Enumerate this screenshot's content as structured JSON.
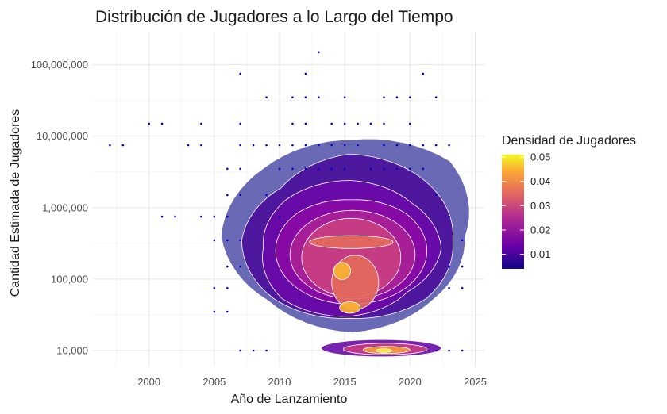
{
  "chart_data": {
    "type": "scatter",
    "title": "Distribución de Jugadores a lo Largo del Tiempo",
    "xlabel": "Año de Lanzamiento",
    "ylabel": "Cantidad Estimada de Jugadores",
    "x_ticks": [
      "2000",
      "2005",
      "2010",
      "2015",
      "2020",
      "2025"
    ],
    "y_ticks": [
      "10,000",
      "100,000",
      "1,000,000",
      "10,000,000",
      "100,000,000"
    ],
    "xlim": [
      1995.7,
      2025.7
    ],
    "ylim": [
      6000,
      290000000
    ],
    "y_scale": "log10",
    "grid": true,
    "point_color": "#0000cc",
    "legend": {
      "title": "Densidad de Jugadores",
      "position": "right",
      "ticks": [
        "0.01",
        "0.02",
        "0.03",
        "0.04",
        "0.05"
      ],
      "colors": [
        "#0d0887",
        "#6a00a8",
        "#b12a90",
        "#e16462",
        "#fca636",
        "#f0f921"
      ]
    },
    "points": [
      [
        1997,
        7500000
      ],
      [
        1998,
        7500000
      ],
      [
        2000,
        15000000
      ],
      [
        2001,
        15000000
      ],
      [
        2001,
        750000
      ],
      [
        2002,
        750000
      ],
      [
        2003,
        7500000
      ],
      [
        2004,
        7500000
      ],
      [
        2004,
        15000000
      ],
      [
        2004,
        750000
      ],
      [
        2005,
        750000
      ],
      [
        2005,
        350000
      ],
      [
        2005,
        75000
      ],
      [
        2005,
        35000
      ],
      [
        2006,
        3500000
      ],
      [
        2006,
        1500000
      ],
      [
        2006,
        750000
      ],
      [
        2006,
        350000
      ],
      [
        2006,
        150000
      ],
      [
        2006,
        75000
      ],
      [
        2006,
        35000
      ],
      [
        2007,
        75000000
      ],
      [
        2007,
        15000000
      ],
      [
        2007,
        7500000
      ],
      [
        2007,
        3500000
      ],
      [
        2007,
        1500000
      ],
      [
        2007,
        350000
      ],
      [
        2007,
        150000
      ],
      [
        2007,
        10000
      ],
      [
        2008,
        7500000
      ],
      [
        2008,
        10000
      ],
      [
        2009,
        35000000
      ],
      [
        2009,
        7500000
      ],
      [
        2009,
        1500000
      ],
      [
        2009,
        10000
      ],
      [
        2010,
        7500000
      ],
      [
        2010,
        3500000
      ],
      [
        2010,
        750000
      ],
      [
        2011,
        35000000
      ],
      [
        2011,
        15000000
      ],
      [
        2011,
        7500000
      ],
      [
        2011,
        3500000
      ],
      [
        2012,
        75000000
      ],
      [
        2012,
        35000000
      ],
      [
        2012,
        15000000
      ],
      [
        2012,
        7500000
      ],
      [
        2012,
        3500000
      ],
      [
        2013,
        150000000
      ],
      [
        2013,
        35000000
      ],
      [
        2013,
        7500000
      ],
      [
        2013,
        3500000
      ],
      [
        2014,
        15000000
      ],
      [
        2014,
        7500000
      ],
      [
        2014,
        3500000
      ],
      [
        2015,
        35000000
      ],
      [
        2015,
        15000000
      ],
      [
        2015,
        7500000
      ],
      [
        2015,
        3500000
      ],
      [
        2016,
        15000000
      ],
      [
        2016,
        7500000
      ],
      [
        2017,
        15000000
      ],
      [
        2017,
        3500000
      ],
      [
        2018,
        35000000
      ],
      [
        2018,
        15000000
      ],
      [
        2018,
        7500000
      ],
      [
        2018,
        3500000
      ],
      [
        2019,
        35000000
      ],
      [
        2019,
        7500000
      ],
      [
        2019,
        3500000
      ],
      [
        2020,
        35000000
      ],
      [
        2020,
        15000000
      ],
      [
        2020,
        7500000
      ],
      [
        2020,
        3500000
      ],
      [
        2021,
        75000000
      ],
      [
        2021,
        7500000
      ],
      [
        2021,
        3500000
      ],
      [
        2022,
        35000000
      ],
      [
        2022,
        7500000
      ],
      [
        2022,
        1500000
      ],
      [
        2022,
        10000
      ],
      [
        2023,
        7500000
      ],
      [
        2023,
        750000
      ],
      [
        2023,
        150000
      ],
      [
        2023,
        75000
      ],
      [
        2023,
        10000
      ],
      [
        2024,
        350000
      ],
      [
        2024,
        150000
      ],
      [
        2024,
        75000
      ],
      [
        2024,
        10000
      ]
    ],
    "density_levels": [
      {
        "level": 0.005,
        "color": "#5c5cb0",
        "center": [
          2015.6,
          400000
        ],
        "rx": 9.6,
        "ry_dec": 1.35,
        "wobble": [
          0.9,
          1.1,
          1.0,
          1.0,
          1.05,
          0.95,
          1.0,
          0.92
        ]
      },
      {
        "level": 0.01,
        "color": "#4b119c",
        "center": [
          2015.4,
          350000
        ],
        "rx": 8.3,
        "ry_dec": 1.15,
        "wobble": [
          0.95,
          1.0,
          1.05,
          0.9,
          1.0,
          1.0,
          0.95,
          1.0
        ]
      },
      {
        "level": 0.015,
        "color": "#6a0aa8",
        "center": [
          2015.4,
          270000
        ],
        "rx": 7.0,
        "ry_dec": 0.95,
        "wobble": [
          1.0,
          0.95,
          1.0,
          1.0,
          0.95,
          1.05,
          1.0,
          0.9
        ]
      },
      {
        "level": 0.02,
        "color": "#8a0aa6",
        "center": [
          2015.5,
          250000
        ],
        "rx": 5.8,
        "ry_dec": 0.75,
        "wobble": [
          1.0,
          1.0,
          0.95,
          1.0,
          1.0,
          1.0,
          1.0,
          1.0
        ]
      },
      {
        "level": 0.025,
        "color": "#a82296",
        "center": [
          2015.6,
          220000
        ],
        "rx": 4.8,
        "ry_dec": 0.62,
        "wobble": [
          1.0,
          1.0,
          1.0,
          1.0,
          1.0,
          1.0,
          1.0,
          1.0
        ]
      },
      {
        "level": 0.03,
        "color": "#c83e82",
        "center": [
          2015.5,
          200000
        ],
        "rx": 3.8,
        "ry_dec": 0.55,
        "wobble": [
          1.0,
          1.0,
          1.0,
          1.0,
          1.0,
          1.0,
          1.0,
          1.0
        ]
      },
      {
        "level": 0.035,
        "color": "#e26a5c",
        "center": [
          2015.5,
          330000
        ],
        "rx": 3.2,
        "ry_dec": 0.09,
        "wobble": [
          1.0,
          1.0,
          1.0,
          1.0,
          1.0,
          1.0,
          1.0,
          1.0
        ]
      },
      {
        "level": 0.035,
        "color": "#e26a5c",
        "center": [
          2015.8,
          90000
        ],
        "rx": 1.8,
        "ry_dec": 0.38,
        "wobble": [
          1.0,
          1.0,
          1.0,
          1.0,
          1.0,
          1.0,
          1.0,
          1.0
        ]
      },
      {
        "level": 0.045,
        "color": "#f8b332",
        "center": [
          2014.8,
          130000
        ],
        "rx": 0.65,
        "ry_dec": 0.12,
        "wobble": [
          1.0,
          1.0,
          1.0,
          1.0,
          1.0,
          1.0,
          1.0,
          1.0
        ]
      },
      {
        "level": 0.045,
        "color": "#f8b332",
        "center": [
          2015.4,
          40000
        ],
        "rx": 0.8,
        "ry_dec": 0.08,
        "wobble": [
          1.0,
          1.0,
          1.0,
          1.0,
          1.0,
          1.0,
          1.0,
          1.0
        ]
      },
      {
        "level": 0.01,
        "color": "#6b10a6",
        "center": [
          2017.8,
          10800
        ],
        "rx": 4.6,
        "ry_dec": 0.12,
        "wobble": [
          1.0,
          1.0,
          1.0,
          1.0,
          1.0,
          1.0,
          1.0,
          1.0
        ]
      },
      {
        "level": 0.025,
        "color": "#c63d83",
        "center": [
          2018.1,
          10500
        ],
        "rx": 3.2,
        "ry_dec": 0.08,
        "wobble": [
          1.0,
          1.0,
          1.0,
          1.0,
          1.0,
          1.0,
          1.0,
          1.0
        ]
      },
      {
        "level": 0.04,
        "color": "#f59a3c",
        "center": [
          2018.2,
          10200
        ],
        "rx": 1.8,
        "ry_dec": 0.05,
        "wobble": [
          1.0,
          1.0,
          1.0,
          1.0,
          1.0,
          1.0,
          1.0,
          1.0
        ]
      },
      {
        "level": 0.05,
        "color": "#f7e526",
        "center": [
          2018.0,
          10000
        ],
        "rx": 0.6,
        "ry_dec": 0.025,
        "wobble": [
          1.0,
          1.0,
          1.0,
          1.0,
          1.0,
          1.0,
          1.0,
          1.0
        ]
      }
    ]
  }
}
